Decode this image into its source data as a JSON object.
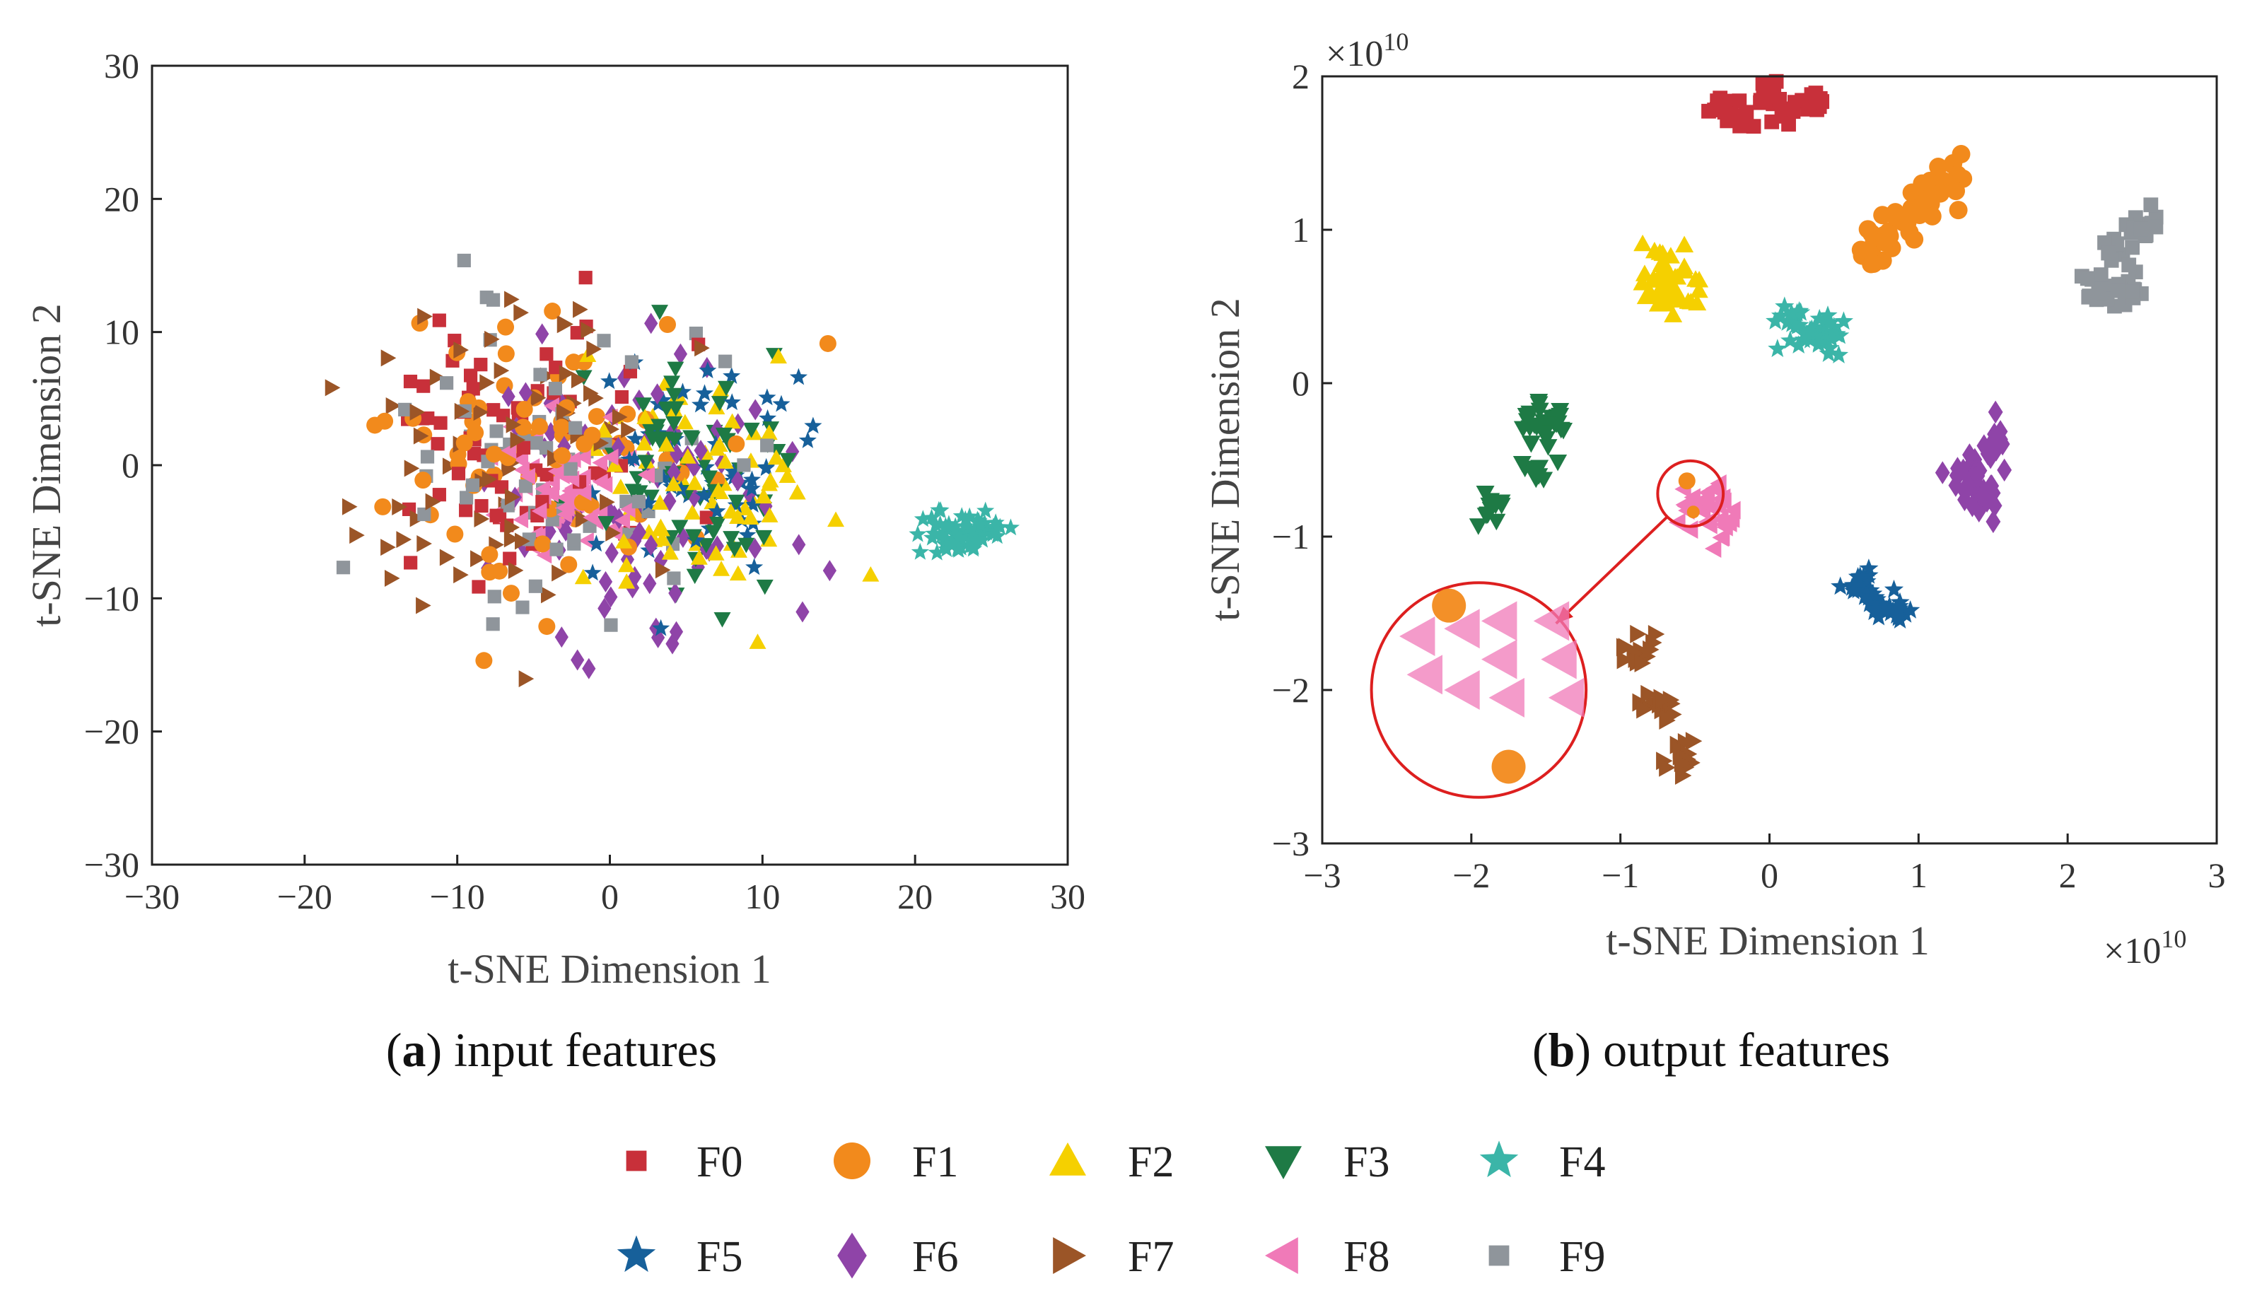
{
  "colors": {
    "F0": "#c8303a",
    "F1": "#f28a1c",
    "F2": "#f5d000",
    "F3": "#1e7a45",
    "F4": "#3bb5a8",
    "F5": "#17609a",
    "F6": "#8f44a8",
    "F7": "#9b5527",
    "F8": "#f07ab8",
    "F9": "#8f959b",
    "zoom_circle": "#dd1f1f"
  },
  "legend": [
    {
      "key": "F0",
      "label": "F0",
      "marker": "square-icon"
    },
    {
      "key": "F1",
      "label": "F1",
      "marker": "circle-icon"
    },
    {
      "key": "F2",
      "label": "F2",
      "marker": "triangle-up-icon"
    },
    {
      "key": "F3",
      "label": "F3",
      "marker": "triangle-down-icon"
    },
    {
      "key": "F4",
      "label": "F4",
      "marker": "star-icon"
    },
    {
      "key": "F5",
      "label": "F5",
      "marker": "star-icon"
    },
    {
      "key": "F6",
      "label": "F6",
      "marker": "diamond-icon"
    },
    {
      "key": "F7",
      "label": "F7",
      "marker": "triangle-right-icon"
    },
    {
      "key": "F8",
      "label": "F8",
      "marker": "triangle-left-icon"
    },
    {
      "key": "F9",
      "label": "F9",
      "marker": "square-icon"
    }
  ],
  "chart_data": [
    {
      "type": "scatter",
      "caption_bold": "a",
      "caption_text": "input features",
      "xlabel": "t-SNE Dimension 1",
      "ylabel": "t-SNE Dimension 2",
      "xlim": [
        -30,
        30
      ],
      "ylim": [
        -30,
        30
      ],
      "xticks": [
        "-30",
        "-20",
        "-10",
        "0",
        "10",
        "20",
        "30"
      ],
      "yticks": [
        "-30",
        "-20",
        "-10",
        "0",
        "10",
        "20",
        "30"
      ],
      "clusters": [
        {
          "class": "F0",
          "cx": -6,
          "cy": 2,
          "sx": 10,
          "sy": 11,
          "n": 70
        },
        {
          "class": "F1",
          "cx": -4,
          "cy": 2,
          "sx": 10,
          "sy": 11,
          "n": 75
        },
        {
          "class": "F2",
          "cx": 6,
          "cy": -2,
          "sx": 7,
          "sy": 8,
          "n": 75
        },
        {
          "class": "F3",
          "cx": 5,
          "cy": 0,
          "sx": 5,
          "sy": 8,
          "n": 70
        },
        {
          "class": "F4",
          "cx": 23,
          "cy": -5,
          "sx": 2.2,
          "sy": 1.6,
          "n": 65
        },
        {
          "class": "F5",
          "cx": 6,
          "cy": 0,
          "sx": 6,
          "sy": 7,
          "n": 60
        },
        {
          "class": "F6",
          "cx": 2,
          "cy": -2,
          "sx": 9,
          "sy": 10,
          "n": 85
        },
        {
          "class": "F7",
          "cx": -8,
          "cy": 1,
          "sx": 10,
          "sy": 11,
          "n": 75
        },
        {
          "class": "F8",
          "cx": -3,
          "cy": -2,
          "sx": 4,
          "sy": 4,
          "n": 70
        },
        {
          "class": "F9",
          "cx": -3,
          "cy": 0,
          "sx": 9,
          "sy": 10,
          "n": 65
        }
      ]
    },
    {
      "type": "scatter",
      "caption_bold": "b",
      "caption_text": "output features",
      "xlabel": "t-SNE Dimension 1",
      "ylabel": "t-SNE Dimension 2",
      "xlim": [
        -3,
        3
      ],
      "ylim": [
        -3,
        2
      ],
      "x_exponent_base": "×10",
      "x_exponent": "10",
      "y_exponent_base": "×10",
      "y_exponent": "10",
      "xticks": [
        "-3",
        "-2",
        "-1",
        "0",
        "1",
        "2",
        "3"
      ],
      "yticks": [
        "-3",
        "-2",
        "-1",
        "0",
        "1",
        "2"
      ],
      "clusters": [
        {
          "class": "F0",
          "points": [
            [
              -0.3,
              1.8
            ],
            [
              0.0,
              1.85
            ],
            [
              0.3,
              1.83
            ],
            [
              -0.2,
              1.75
            ],
            [
              0.1,
              1.78
            ]
          ],
          "spread": 0.05,
          "n": 55
        },
        {
          "class": "F1",
          "points": [
            [
              0.7,
              0.85
            ],
            [
              0.9,
              1.05
            ],
            [
              1.05,
              1.2
            ],
            [
              1.2,
              1.32
            ]
          ],
          "spread": 0.07,
          "n": 55
        },
        {
          "class": "F2",
          "points": [
            [
              -0.75,
              0.75
            ],
            [
              -0.6,
              0.6
            ],
            [
              -0.7,
              0.55
            ]
          ],
          "spread": 0.08,
          "n": 50
        },
        {
          "class": "F3",
          "points": [
            [
              -1.6,
              -0.2
            ],
            [
              -1.45,
              -0.3
            ],
            [
              -1.6,
              -0.55
            ],
            [
              -1.9,
              -0.8
            ]
          ],
          "spread": 0.07,
          "n": 50
        },
        {
          "class": "F4",
          "points": [
            [
              0.3,
              0.35
            ],
            [
              0.15,
              0.4
            ],
            [
              0.4,
              0.3
            ]
          ],
          "spread": 0.06,
          "n": 45
        },
        {
          "class": "F5",
          "points": [
            [
              0.6,
              -1.3
            ],
            [
              0.75,
              -1.45
            ],
            [
              0.85,
              -1.5
            ]
          ],
          "spread": 0.055,
          "n": 45
        },
        {
          "class": "F6",
          "points": [
            [
              1.3,
              -0.6
            ],
            [
              1.45,
              -0.55
            ],
            [
              1.4,
              -0.75
            ],
            [
              1.5,
              -0.4
            ]
          ],
          "spread": 0.07,
          "n": 50
        },
        {
          "class": "F7",
          "points": [
            [
              -0.9,
              -1.75
            ],
            [
              -0.75,
              -2.1
            ],
            [
              -0.6,
              -2.45
            ]
          ],
          "spread": 0.06,
          "n": 45
        },
        {
          "class": "F8",
          "points": [
            [
              -0.4,
              -0.75
            ],
            [
              -0.3,
              -0.9
            ],
            [
              -0.5,
              -0.85
            ]
          ],
          "spread": 0.06,
          "n": 40
        },
        {
          "class": "F9",
          "points": [
            [
              2.5,
              1.0
            ],
            [
              2.35,
              0.85
            ],
            [
              2.2,
              0.6
            ],
            [
              2.4,
              0.55
            ]
          ],
          "spread": 0.06,
          "n": 45
        }
      ],
      "highlight": {
        "small_circle": {
          "x": -0.53,
          "y": -0.72,
          "r": 0.22
        },
        "zoom_circle": {
          "x": -1.95,
          "y": -2.0,
          "r": 0.72
        },
        "zoomed_points": [
          {
            "class": "F1",
            "x": -2.15,
            "y": -1.45
          },
          {
            "class": "F1",
            "x": -1.75,
            "y": -2.5
          },
          {
            "class": "F8",
            "x": -2.35,
            "y": -1.65
          },
          {
            "class": "F8",
            "x": -2.05,
            "y": -1.6
          },
          {
            "class": "F8",
            "x": -1.8,
            "y": -1.55
          },
          {
            "class": "F8",
            "x": -1.45,
            "y": -1.55
          },
          {
            "class": "F8",
            "x": -2.3,
            "y": -1.9
          },
          {
            "class": "F8",
            "x": -2.05,
            "y": -2.0
          },
          {
            "class": "F8",
            "x": -1.8,
            "y": -1.8
          },
          {
            "class": "F8",
            "x": -1.4,
            "y": -1.8
          },
          {
            "class": "F8",
            "x": -1.75,
            "y": -2.05
          },
          {
            "class": "F8",
            "x": -1.35,
            "y": -2.05
          }
        ]
      }
    }
  ]
}
